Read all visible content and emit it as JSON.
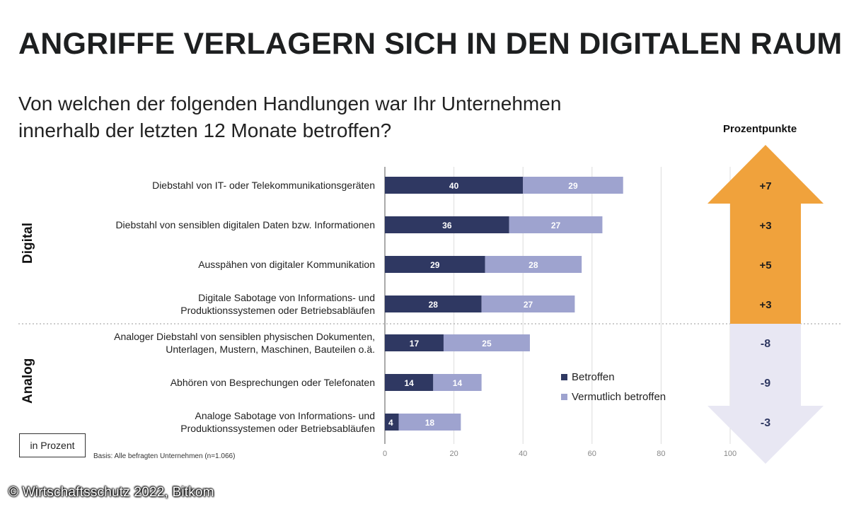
{
  "title": "ANGRIFFE VERLAGERN SICH IN DEN DIGITALEN RAUM",
  "question_line1": "Von welchen der folgenden Handlungen war Ihr Unternehmen",
  "question_line2": "innerhalb der letzten 12 Monate betroffen?",
  "unit_label": "in Prozent",
  "basis": "Basis: Alle befragten Unternehmen (n=1.066)",
  "credit": "© Wirtschaftsschutz 2022, Bitkom",
  "colors": {
    "betroffen": "#2f3862",
    "vermutlich": "#9ea3cf",
    "up_arrow": "#f0a23c",
    "down_arrow": "#e8e7f3",
    "down_text": "#2f3862"
  },
  "chart_data": {
    "type": "bar",
    "orientation": "horizontal",
    "stacked": true,
    "title": "ANGRIFFE VERLAGERN SICH IN DEN DIGITALEN RAUM",
    "xlabel": "in Prozent",
    "xlim": [
      0,
      100
    ],
    "xticks": [
      0,
      20,
      40,
      60,
      80,
      100
    ],
    "groups": [
      "Digital",
      "Analog"
    ],
    "categories": [
      [
        "Diebstahl von IT- oder Telekommunikationsgeräten"
      ],
      [
        "Diebstahl von sensiblen digitalen Daten bzw. Informationen"
      ],
      [
        "Ausspähen von digitaler Kommunikation"
      ],
      [
        "Digitale Sabotage von Informations- und",
        "Produktionssystemen oder Betriebsabläufen"
      ],
      [
        "Analoger Diebstahl von sensiblen physischen Dokumenten,",
        "Unterlagen, Mustern, Maschinen, Bauteilen o.ä."
      ],
      [
        "Abhören von Besprechungen oder Telefonaten"
      ],
      [
        "Analoge Sabotage von Informations- und",
        "Produktionssystemen oder Betriebsabläufen"
      ]
    ],
    "category_group": [
      "Digital",
      "Digital",
      "Digital",
      "Digital",
      "Analog",
      "Analog",
      "Analog"
    ],
    "series": [
      {
        "name": "Betroffen",
        "values": [
          40,
          36,
          29,
          28,
          17,
          14,
          4
        ]
      },
      {
        "name": "Vermutlich betroffen",
        "values": [
          29,
          27,
          28,
          27,
          25,
          14,
          18
        ]
      }
    ],
    "change_header": "Prozentpunkte",
    "changes": [
      "+7",
      "+3",
      "+5",
      "+3",
      "-8",
      "-9",
      "-3"
    ],
    "legend_position": "right, lower middle"
  }
}
